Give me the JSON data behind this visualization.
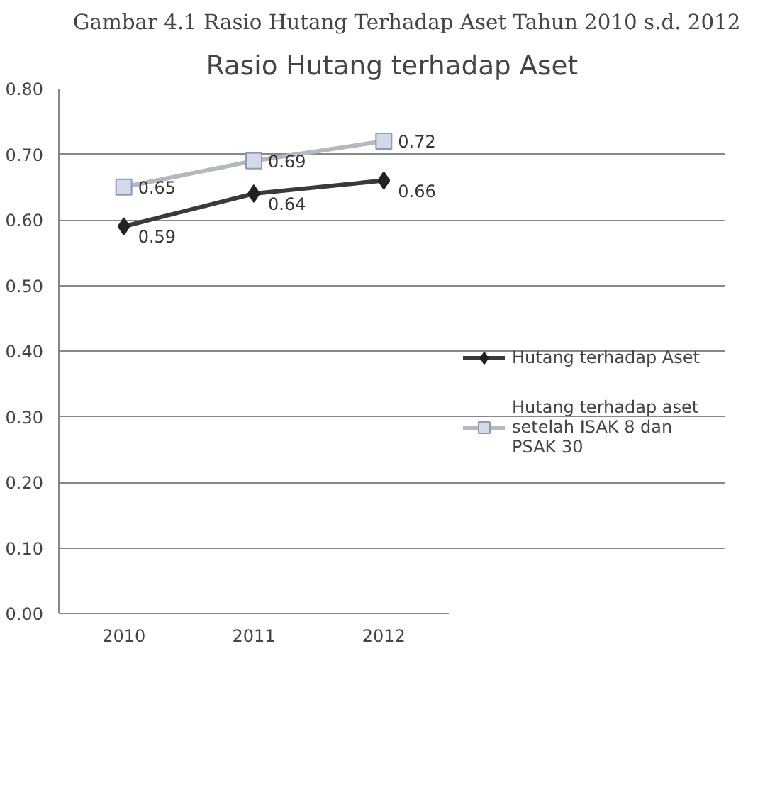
{
  "chart_data": {
    "type": "line",
    "title": "Rasio Hutang terhadap Aset",
    "annotations": [
      "Gambar 4.1 Rasio Hutang Terhadap Aset Tahun 2010 s.d. 2012"
    ],
    "categories": [
      "2010",
      "2011",
      "2012"
    ],
    "series": [
      {
        "name": "Hutang terhadap Aset",
        "color": "#3a3a3a",
        "marker": "diamond",
        "values": [
          0.59,
          0.64,
          0.66
        ]
      },
      {
        "name": "Hutang terhadap aset setelah ISAK 8 dan PSAK 30",
        "color": "#b4b8c0",
        "marker": "square",
        "values": [
          0.65,
          0.69,
          0.72
        ]
      }
    ],
    "ylim": [
      0,
      0.8
    ],
    "yticks": [
      {
        "value": 0,
        "label": "0.00"
      },
      {
        "value": 0.1,
        "label": "0.10"
      },
      {
        "value": 0.2,
        "label": "0.20"
      },
      {
        "value": 0.3,
        "label": "0.30"
      },
      {
        "value": 0.4,
        "label": "0.40"
      },
      {
        "value": 0.5,
        "label": "0.50"
      },
      {
        "value": 0.6,
        "label": "0.60"
      },
      {
        "value": 0.7,
        "label": "0.70"
      },
      {
        "value": 0.8,
        "label": "0.80"
      }
    ],
    "grid": "y",
    "legend": "right",
    "data_labels": true,
    "line_style": "solid"
  }
}
